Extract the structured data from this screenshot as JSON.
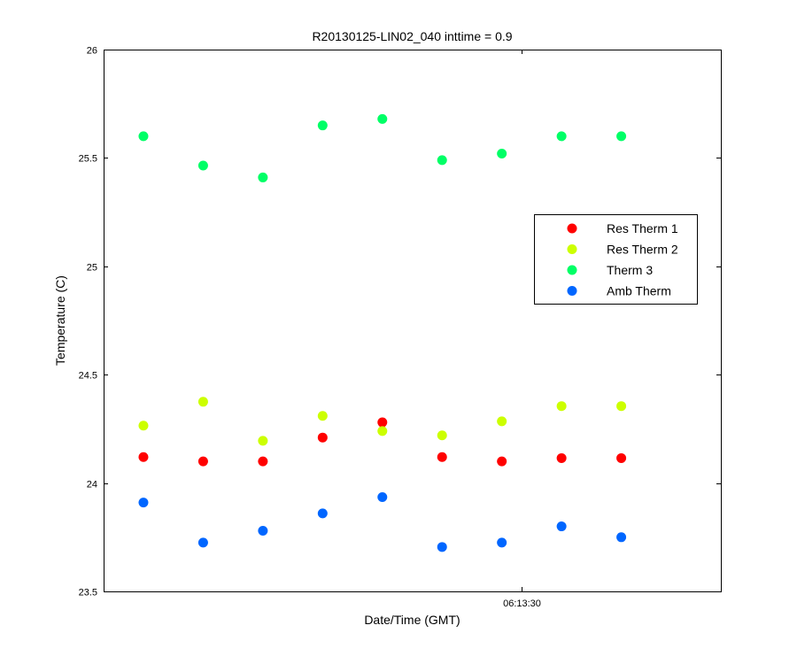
{
  "chart_data": {
    "type": "scatter",
    "title": "R20130125-LIN02_040 inttime = 0.9",
    "xlabel": "Date/Time (GMT)",
    "ylabel": "Temperature (C)",
    "ylim": [
      23.5,
      26
    ],
    "yticks": [
      23.5,
      24,
      24.5,
      25,
      25.5,
      26
    ],
    "ytick_labels": [
      "23.5",
      "24",
      "24.5",
      "25",
      "25.5",
      "26"
    ],
    "xlim": [
      "06:13:09",
      "06:13:40"
    ],
    "xticks": [
      "06:13:30"
    ],
    "xtick_labels": [
      "06:13:30"
    ],
    "x": [
      "06:13:11",
      "06:13:14",
      "06:13:17",
      "06:13:20",
      "06:13:23",
      "06:13:26",
      "06:13:29",
      "06:13:32",
      "06:13:35"
    ],
    "grid": false,
    "legend_position": "right",
    "series": [
      {
        "name": "Res Therm 1",
        "color": "#ff0000",
        "values": [
          24.12,
          24.1,
          24.1,
          24.21,
          24.28,
          24.12,
          24.1,
          24.115,
          24.115
        ]
      },
      {
        "name": "Res Therm 2",
        "color": "#ccff00",
        "values": [
          24.265,
          24.375,
          24.195,
          24.31,
          24.24,
          24.22,
          24.285,
          24.355,
          24.355
        ]
      },
      {
        "name": "Therm 3",
        "color": "#00ff66",
        "values": [
          25.6,
          25.465,
          25.41,
          25.65,
          25.68,
          25.49,
          25.52,
          25.6,
          25.6
        ]
      },
      {
        "name": "Amb Therm",
        "color": "#0066ff",
        "values": [
          23.91,
          23.725,
          23.78,
          23.86,
          23.935,
          23.705,
          23.725,
          23.8,
          23.75
        ]
      }
    ]
  }
}
